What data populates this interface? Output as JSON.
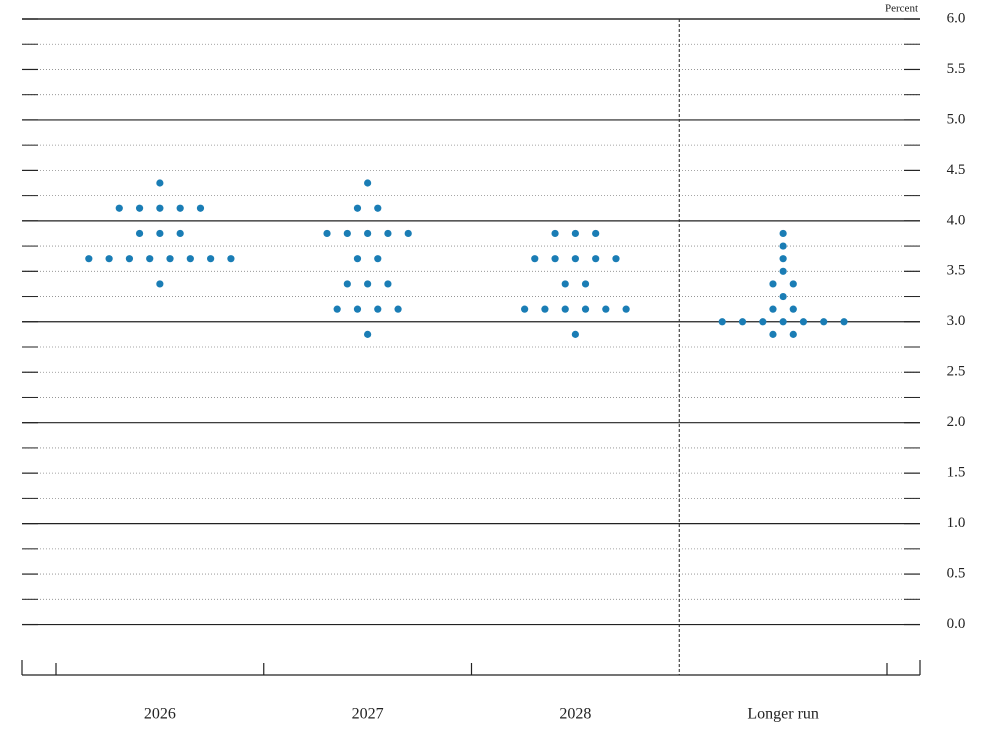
{
  "chart_data": {
    "type": "dot",
    "y_label": "Percent",
    "categories": [
      "2026",
      "2027",
      "2028",
      "Longer run"
    ],
    "values": [
      [
        4.375,
        4.125,
        4.125,
        4.125,
        4.125,
        4.125,
        3.875,
        3.875,
        3.875,
        3.625,
        3.625,
        3.625,
        3.625,
        3.625,
        3.625,
        3.625,
        3.625,
        3.375
      ],
      [
        4.375,
        4.125,
        4.125,
        3.875,
        3.875,
        3.875,
        3.875,
        3.875,
        3.625,
        3.625,
        3.375,
        3.375,
        3.375,
        3.125,
        3.125,
        3.125,
        3.125,
        2.875
      ],
      [
        3.875,
        3.875,
        3.875,
        3.625,
        3.625,
        3.625,
        3.625,
        3.625,
        3.375,
        3.375,
        3.125,
        3.125,
        3.125,
        3.125,
        3.125,
        3.125,
        2.875
      ],
      [
        3.875,
        3.75,
        3.625,
        3.5,
        3.375,
        3.375,
        3.25,
        3.125,
        3.125,
        3,
        3,
        3,
        3,
        3,
        3,
        3,
        2.875,
        2.875
      ]
    ],
    "color": "#1a7db5",
    "ylim": [
      -0.5,
      6.0
    ],
    "yticks": [
      {
        "value": 0,
        "label": "0.0"
      },
      0.5,
      {
        "value": 1,
        "label": "1.0"
      },
      1.5,
      {
        "value": 2,
        "label": "2.0"
      },
      2.5,
      {
        "value": 3,
        "label": "3.0"
      },
      3.5,
      {
        "value": 4,
        "label": "4.0"
      },
      4.5,
      {
        "value": 5,
        "label": "5.0"
      },
      5.5,
      {
        "value": 6,
        "label": "6.0"
      }
    ],
    "minor_yticks": [
      0.25,
      0.75,
      1.25,
      1.75,
      2.25,
      2.75,
      3.25,
      3.75,
      4.25,
      4.75,
      5.25,
      5.75
    ],
    "grid": true
  }
}
